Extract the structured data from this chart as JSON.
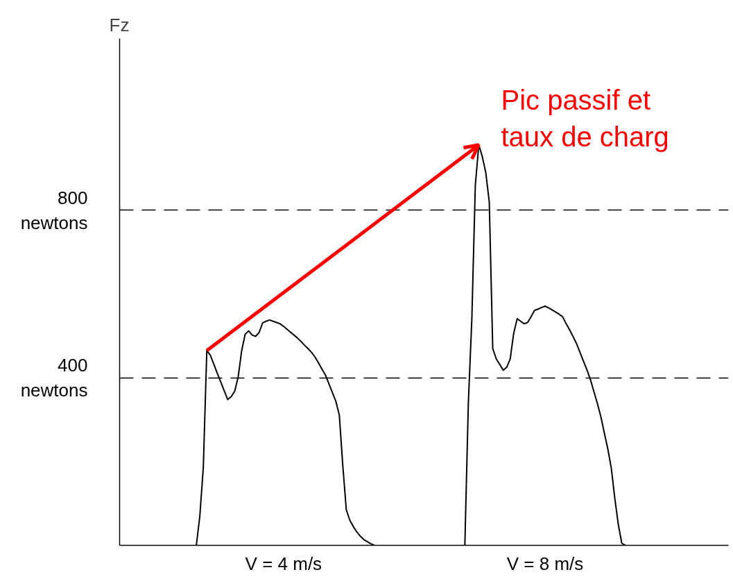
{
  "chart_data": {
    "type": "line",
    "ylabel": "Fz",
    "ylim": [
      0,
      1210
    ],
    "yticks": [
      {
        "value": 400,
        "label": "400\nnewtons"
      },
      {
        "value": 800,
        "label": "800\nnewtons"
      }
    ],
    "grid": "y",
    "line_style": "solid",
    "categories": [
      null,
      null,
      null,
      null,
      null,
      null,
      null,
      null,
      null,
      null,
      null,
      null,
      null,
      null,
      null,
      null,
      null,
      null,
      null,
      null,
      null,
      null,
      null,
      null,
      null,
      null,
      null,
      null,
      null,
      null,
      null,
      null,
      null,
      null,
      null,
      null,
      null,
      null,
      null,
      null,
      null,
      null,
      null,
      null,
      null,
      null,
      null,
      "V = 4 m/s",
      null,
      null,
      null,
      null,
      null,
      null,
      null,
      null,
      null,
      null,
      null,
      null,
      null,
      null,
      null,
      null,
      null,
      null,
      null,
      null,
      null,
      null,
      null,
      null,
      null,
      null,
      null,
      null,
      null,
      null,
      null,
      null,
      null,
      null,
      null,
      null,
      null,
      null,
      null,
      null,
      null,
      null,
      null,
      null,
      null,
      null,
      null,
      null,
      null,
      null,
      null,
      null,
      null,
      null,
      null,
      null,
      null,
      null,
      null,
      null,
      null,
      null,
      null,
      null,
      null,
      null,
      null,
      null,
      null,
      null,
      null,
      null,
      null,
      null,
      "V = 8 m/s",
      null,
      null,
      null,
      null,
      null,
      null,
      null,
      null,
      null,
      null,
      null,
      null,
      null,
      null,
      null,
      null,
      null,
      null,
      null,
      null,
      null,
      null,
      null,
      null
    ],
    "series": [
      {
        "color": "#000000",
        "values": [
          null,
          null,
          null,
          null,
          null,
          null,
          null,
          null,
          null,
          null,
          null,
          null,
          null,
          null,
          null,
          null,
          null,
          null,
          null,
          null,
          null,
          null,
          0,
          70,
          186,
          465,
          454,
          433,
          411,
          390,
          369,
          348,
          355,
          368,
          402,
          465,
          504,
          512,
          502,
          499,
          508,
          531,
          535,
          538,
          535,
          532,
          529,
          523,
          516,
          509,
          502,
          495,
          487,
          478,
          470,
          461,
          450,
          436,
          421,
          407,
          386,
          365,
          344,
          311,
          190,
          85,
          60,
          45,
          32,
          22,
          14,
          9,
          4,
          0,
          null,
          null,
          null,
          null,
          null,
          null,
          null,
          null,
          null,
          null,
          null,
          null,
          null,
          null,
          null,
          null,
          null,
          null,
          null,
          null,
          null,
          null,
          null,
          null,
          null,
          null,
          null,
          null,
          null,
          null,
          null,
          null,
          null,
          null,
          null,
          null,
          null,
          null,
          null,
          null,
          null,
          null,
          null,
          null,
          null,
          null,
          null,
          null,
          null,
          null,
          null,
          null,
          null,
          null,
          null,
          null,
          null,
          null,
          null,
          null,
          null,
          null,
          null,
          null,
          null,
          null,
          null,
          null,
          null,
          null,
          null,
          null,
          null
        ]
      },
      {
        "color": "#000000",
        "values": [
          null,
          null,
          null,
          null,
          null,
          null,
          null,
          null,
          null,
          null,
          null,
          null,
          null,
          null,
          null,
          null,
          null,
          null,
          null,
          null,
          null,
          null,
          null,
          null,
          null,
          null,
          null,
          null,
          null,
          null,
          null,
          null,
          null,
          null,
          null,
          null,
          null,
          null,
          null,
          null,
          null,
          null,
          null,
          null,
          null,
          null,
          null,
          null,
          null,
          null,
          null,
          null,
          null,
          null,
          null,
          null,
          null,
          null,
          null,
          null,
          null,
          null,
          null,
          null,
          null,
          null,
          null,
          null,
          null,
          null,
          null,
          null,
          null,
          null,
          null,
          null,
          null,
          null,
          null,
          null,
          null,
          null,
          null,
          null,
          null,
          null,
          null,
          null,
          null,
          null,
          null,
          null,
          null,
          null,
          null,
          null,
          null,
          null,
          null,
          0,
          340,
          540,
          860,
          956,
          928,
          890,
          820,
          470,
          445,
          432,
          418,
          425,
          445,
          506,
          541,
          535,
          529,
          532,
          546,
          561,
          564,
          568,
          571,
          567,
          562,
          557,
          552,
          546,
          530,
          515,
          499,
          482,
          461,
          440,
          419,
          396,
          367,
          339,
          307,
          268,
          230,
          184,
          112,
          50,
          5,
          0,
          null
        ]
      }
    ],
    "annotations": [
      "Pic passif et\ntaux de charg"
    ]
  }
}
